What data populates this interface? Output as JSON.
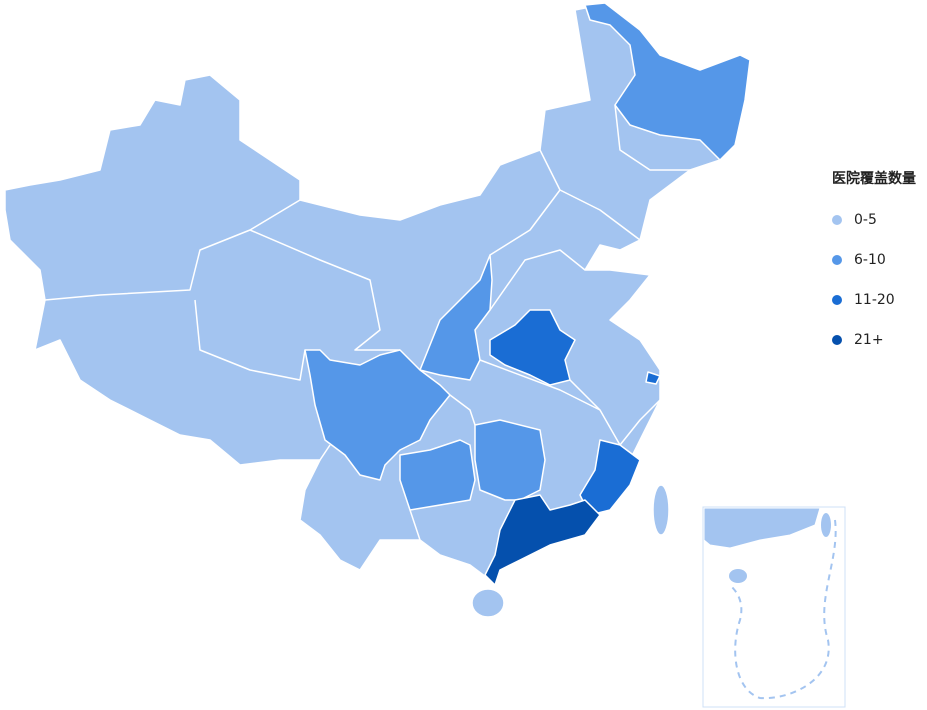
{
  "legend": {
    "title": "医院覆盖数量",
    "items": [
      {
        "label": "0-5",
        "color": "#a3c4f0"
      },
      {
        "label": "6-10",
        "color": "#5597e8"
      },
      {
        "label": "11-20",
        "color": "#1a6dd4"
      },
      {
        "label": "21+",
        "color": "#0550ad"
      }
    ]
  },
  "regions": [
    {
      "name": "heilongjiang",
      "level": 1
    },
    {
      "name": "shaanxi",
      "level": 1
    },
    {
      "name": "sichuan",
      "level": 1
    },
    {
      "name": "guizhou",
      "level": 1
    },
    {
      "name": "hunan",
      "level": 1
    },
    {
      "name": "henan",
      "level": 2
    },
    {
      "name": "fujian",
      "level": 2
    },
    {
      "name": "shanghai",
      "level": 2
    },
    {
      "name": "guangdong",
      "level": 3
    }
  ]
}
